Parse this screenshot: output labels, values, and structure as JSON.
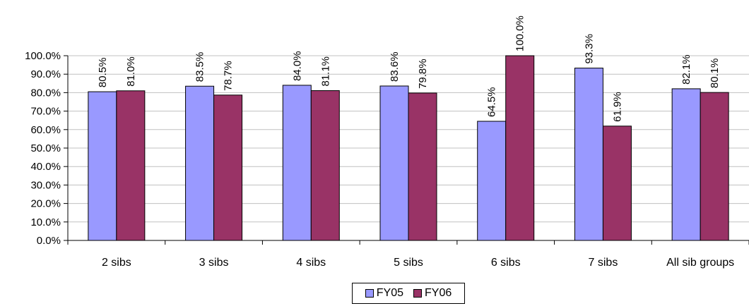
{
  "chart_data": {
    "type": "bar",
    "title": "",
    "xlabel": "",
    "ylabel": "",
    "categories": [
      "2 sibs",
      "3 sibs",
      "4 sibs",
      "5 sibs",
      "6 sibs",
      "7 sibs",
      "All sib groups"
    ],
    "series": [
      {
        "name": "FY05",
        "values": [
          80.5,
          83.5,
          84.0,
          83.6,
          64.5,
          93.3,
          82.1
        ],
        "color": "#9999ff"
      },
      {
        "name": "FY06",
        "values": [
          81.0,
          78.7,
          81.1,
          79.8,
          100.0,
          61.9,
          80.1
        ],
        "color": "#993366"
      }
    ],
    "data_labels": [
      [
        "80.5%",
        "83.5%",
        "84.0%",
        "83.6%",
        "64.5%",
        "93.3%",
        "82.1%"
      ],
      [
        "81.0%",
        "78.7%",
        "81.1%",
        "79.8%",
        "100.0%",
        "61.9%",
        "80.1%"
      ]
    ],
    "y_tick_labels": [
      "0.0%",
      "10.0%",
      "20.0%",
      "30.0%",
      "40.0%",
      "50.0%",
      "60.0%",
      "70.0%",
      "80.0%",
      "90.0%",
      "100.0%"
    ],
    "ylim": [
      0,
      100
    ],
    "grid": true,
    "legend_position": "bottom"
  }
}
